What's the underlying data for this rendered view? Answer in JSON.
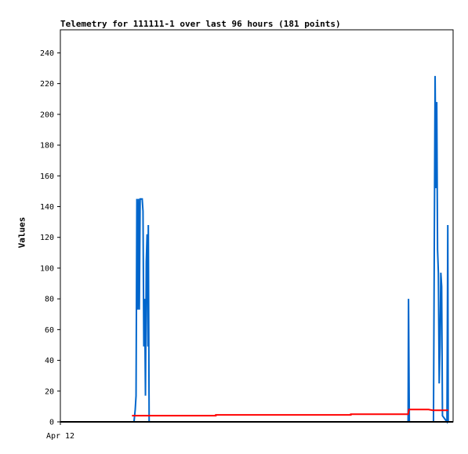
{
  "chart_data": {
    "type": "line",
    "title": "Telemetry for 111111-1 over last 96 hours (181 points)",
    "ylabel": "Values",
    "xlabel": "",
    "ylim": [
      0,
      255
    ],
    "yticks": [
      0,
      20,
      40,
      60,
      80,
      100,
      120,
      140,
      160,
      180,
      200,
      220,
      240
    ],
    "x_tick_labels": [
      "Apr 12"
    ],
    "xlim_hours": [
      0,
      96
    ],
    "grid": false,
    "legend": "none",
    "colors": {
      "series_blue": "#0066cc",
      "series_red": "#ff0000",
      "series_black": "#000000"
    },
    "series": [
      {
        "color": "#0066cc",
        "points": [
          [
            18.0,
            0
          ],
          [
            18.3,
            8
          ],
          [
            18.5,
            17
          ],
          [
            18.7,
            145
          ],
          [
            18.9,
            73
          ],
          [
            19.1,
            145
          ],
          [
            19.3,
            73
          ],
          [
            19.5,
            145
          ],
          [
            20.0,
            145
          ],
          [
            20.2,
            137
          ],
          [
            20.4,
            49
          ],
          [
            20.6,
            80
          ],
          [
            20.8,
            17
          ],
          [
            21.0,
            104
          ],
          [
            21.2,
            122
          ],
          [
            21.4,
            49
          ],
          [
            21.5,
            128
          ],
          [
            21.7,
            0
          ],
          [
            85.0,
            0
          ],
          [
            85.1,
            80
          ],
          [
            85.3,
            0
          ],
          [
            91.2,
            0
          ],
          [
            91.4,
            112
          ],
          [
            91.6,
            225
          ],
          [
            91.8,
            152
          ],
          [
            92.0,
            208
          ],
          [
            92.2,
            112
          ],
          [
            92.4,
            97
          ],
          [
            92.6,
            25
          ],
          [
            92.8,
            49
          ],
          [
            93.0,
            97
          ],
          [
            93.2,
            88
          ],
          [
            93.4,
            4
          ],
          [
            94.5,
            0
          ],
          [
            94.7,
            128
          ],
          [
            94.8,
            0
          ]
        ]
      },
      {
        "color": "#ff0000",
        "points": [
          [
            17.5,
            4
          ],
          [
            38.0,
            4
          ],
          [
            38.0,
            4.5
          ],
          [
            71.0,
            4.5
          ],
          [
            71.0,
            5
          ],
          [
            85.0,
            5
          ],
          [
            85.2,
            8
          ],
          [
            90.0,
            8
          ],
          [
            91.0,
            7.5
          ],
          [
            94.8,
            7.5
          ]
        ]
      },
      {
        "color": "#000000",
        "points": [
          [
            0,
            0
          ],
          [
            96,
            0
          ]
        ]
      }
    ]
  }
}
